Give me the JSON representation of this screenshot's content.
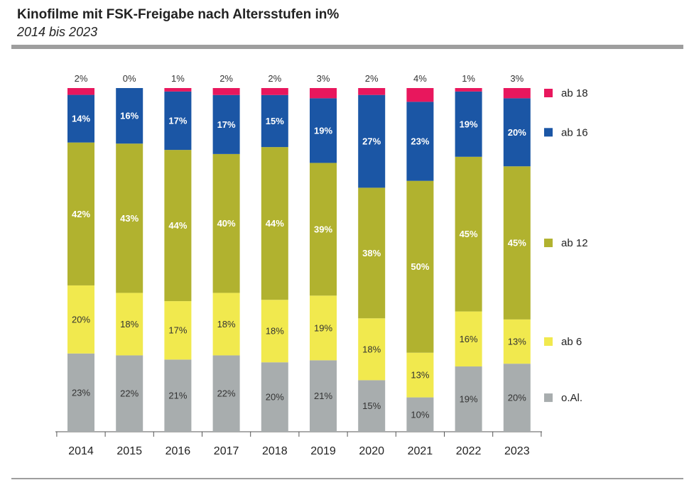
{
  "header": {
    "title": "Kinofilme mit FSK-Freigabe nach Altersstufen in%",
    "subtitle": "2014 bis 2023"
  },
  "chart_data": {
    "type": "bar",
    "stacked": true,
    "title": "Kinofilme mit FSK-Freigabe nach Altersstufen in%",
    "subtitle": "2014 bis 2023",
    "xlabel": "",
    "ylabel": "",
    "ylim": [
      0,
      100
    ],
    "grid": false,
    "legend_position": "right",
    "categories": [
      "2014",
      "2015",
      "2016",
      "2017",
      "2018",
      "2019",
      "2020",
      "2021",
      "2022",
      "2023"
    ],
    "series": [
      {
        "name": "o.Al.",
        "color": "#a8adae",
        "label_color": "#333333",
        "values": [
          23,
          22,
          21,
          22,
          20,
          21,
          15,
          10,
          19,
          20
        ]
      },
      {
        "name": "ab 6",
        "color": "#f1e94e",
        "label_color": "#333333",
        "values": [
          20,
          18,
          17,
          18,
          18,
          19,
          18,
          13,
          16,
          13
        ]
      },
      {
        "name": "ab 12",
        "color": "#b1b22f",
        "label_color": "#ffffff",
        "values": [
          42,
          43,
          44,
          40,
          44,
          39,
          38,
          50,
          45,
          45
        ]
      },
      {
        "name": "ab 16",
        "color": "#1b56a5",
        "label_color": "#ffffff",
        "values": [
          14,
          16,
          17,
          17,
          15,
          19,
          27,
          23,
          19,
          20
        ]
      },
      {
        "name": "ab 18",
        "color": "#e8175d",
        "label_color": "#333333",
        "values": [
          2,
          0,
          1,
          2,
          2,
          3,
          2,
          4,
          1,
          3
        ]
      }
    ],
    "value_suffix": "%"
  }
}
